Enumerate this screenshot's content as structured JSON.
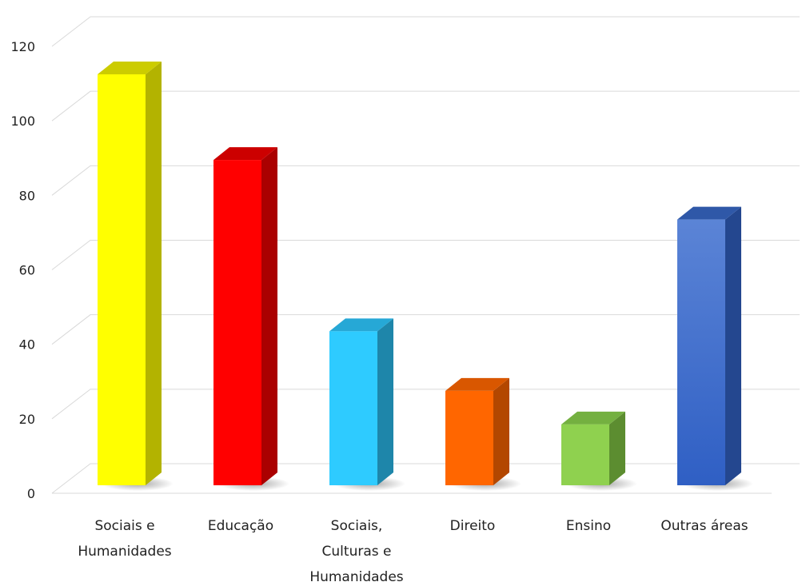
{
  "chart_data": {
    "type": "bar",
    "style": "3d-column",
    "categories": [
      [
        "Sociais e",
        "Humanidades"
      ],
      [
        "Educação"
      ],
      [
        "Sociais,",
        "Culturas e",
        "Humanidades"
      ],
      [
        "Direito"
      ],
      [
        "Ensino"
      ],
      [
        "Outras áreas"
      ]
    ],
    "values": [
      114,
      91,
      45,
      29,
      20,
      75
    ],
    "ylim": [
      0,
      120
    ],
    "yticks": [
      "0",
      "20",
      "40",
      "60",
      "80",
      "100",
      "120"
    ],
    "grid": true,
    "legend": "none",
    "colors": [
      {
        "front": "#ffff00",
        "side": "#b3b300",
        "top": "#cccc00"
      },
      {
        "front": "#ff0000",
        "side": "#aa0000",
        "top": "#cc0000"
      },
      {
        "front": "#2ecbff",
        "side": "#1e86aa",
        "top": "#26a8d6"
      },
      {
        "front": "#ff6600",
        "side": "#b34700",
        "top": "#d95700"
      },
      {
        "front": "#8fd14f",
        "side": "#5c8d30",
        "top": "#74b040"
      },
      {
        "front": "#3a6ccc",
        "side": "#24478f",
        "top": "#2f58a8"
      }
    ]
  }
}
